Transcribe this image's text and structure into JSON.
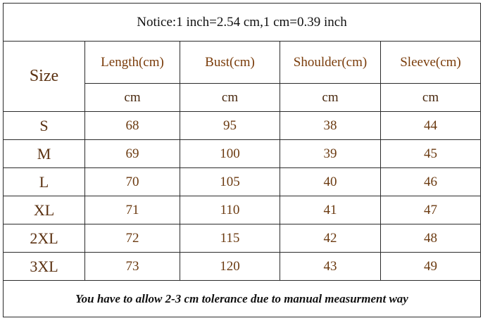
{
  "notice": "Notice:1 inch=2.54 cm,1 cm=0.39 inch",
  "table": {
    "size_header": "Size",
    "headers": [
      "Length(cm)",
      "Bust(cm)",
      "Shoulder(cm)",
      "Sleeve(cm)"
    ],
    "units": [
      "cm",
      "cm",
      "cm",
      "cm"
    ],
    "rows": [
      [
        "S",
        68,
        95,
        38,
        44
      ],
      [
        "M",
        69,
        100,
        39,
        45
      ],
      [
        "L",
        70,
        105,
        40,
        46
      ],
      [
        "XL",
        71,
        110,
        41,
        47
      ],
      [
        "2XL",
        72,
        115,
        42,
        48
      ],
      [
        "3XL",
        73,
        120,
        43,
        49
      ]
    ]
  },
  "footer": "You have to allow 2-3 cm tolerance due to manual measurment way"
}
